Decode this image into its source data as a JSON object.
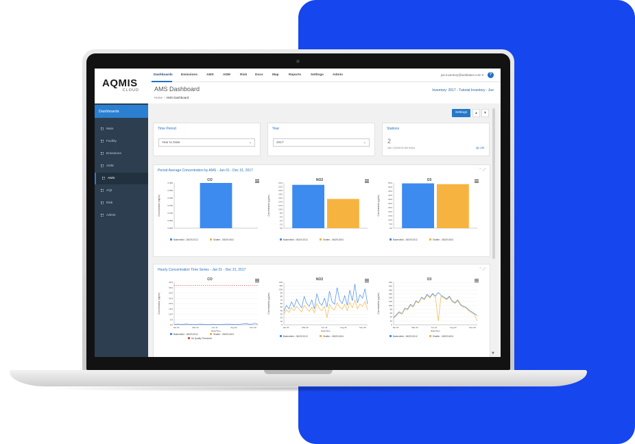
{
  "app": {
    "logo_main": "AQMIS",
    "logo_sub": "CLOUD",
    "user": "joe.inventory@weblakes.com",
    "help_symbol": "?",
    "inventory": "Inventory: 2017 - Tutorial Inventory - Joe",
    "accent_color": "#2b7fd1"
  },
  "nav": {
    "items": [
      {
        "label": "Dashboards",
        "active": true
      },
      {
        "label": "Emissions"
      },
      {
        "label": "AMS"
      },
      {
        "label": "ADM"
      },
      {
        "label": "Risk"
      },
      {
        "label": "Docs"
      },
      {
        "label": "Map"
      },
      {
        "label": "Reports"
      },
      {
        "label": "Settings"
      },
      {
        "label": "Admin"
      }
    ]
  },
  "page": {
    "title": "AMS Dashboard",
    "breadcrumb": [
      "Home",
      "AMS Dashboard"
    ]
  },
  "sidebar": {
    "header": "Dashboards",
    "items": [
      {
        "label": "Main"
      },
      {
        "label": "Facility"
      },
      {
        "label": "Emissions"
      },
      {
        "label": "ADM"
      },
      {
        "label": "AMS",
        "active": true
      },
      {
        "label": "AQI"
      },
      {
        "label": "Risk"
      },
      {
        "label": "Admin"
      }
    ]
  },
  "toolbar": {
    "settings_label": "Settings",
    "up_symbol": "▲",
    "down_symbol": "▼"
  },
  "filters": {
    "time_period": {
      "title": "Time Period",
      "value": "Year to Date"
    },
    "year": {
      "title": "Year",
      "value": "2017"
    },
    "stations": {
      "title": "Stations",
      "count": "2",
      "note": "with CADMOD Met file(s)",
      "list_label": "List"
    }
  },
  "sections": {
    "period": {
      "title": "Period Average Concentration by AMS - Jan 01 - Dec 31, 2017",
      "controls": "⌃ ⤢"
    },
    "hourly": {
      "title": "Hourly Concentration Time Series - Jan 01 - Dec 31, 2017",
      "controls": "⌃ ⤢"
    }
  },
  "chart_data": [
    {
      "type": "bar",
      "title": "CO",
      "ylabel": "Concentration (mg/m³)",
      "ylim": [
        0,
        0.3
      ],
      "yticks": [
        "0.300",
        "0.250",
        "0.200",
        "0.150",
        "0.100",
        "0.050",
        "0.000"
      ],
      "series": [
        {
          "name": "Bakersfield - 06029-2012",
          "color": "#3d8bef",
          "value": 0.3
        },
        {
          "name": "Shafter - 06029-6001",
          "color": "#f6b33f",
          "value": null
        }
      ]
    },
    {
      "type": "bar",
      "title": "NO2",
      "ylabel": "Concentration (µg/m³)",
      "ylim": [
        0,
        24
      ],
      "yticks": [
        "24.0",
        "22.0",
        "20.0",
        "18.0",
        "16.0",
        "14.0",
        "12.0",
        "10.0",
        "8.0",
        "6.0",
        "4.0",
        "2.0",
        "0.0"
      ],
      "series": [
        {
          "name": "Bakersfield - 06029-2012",
          "color": "#3d8bef",
          "value": 23.0
        },
        {
          "name": "Shafter - 06029-6001",
          "color": "#f6b33f",
          "value": 15.5
        }
      ]
    },
    {
      "type": "bar",
      "title": "O3",
      "ylabel": "Concentration (µg/m³)",
      "ylim": [
        0,
        55
      ],
      "yticks": [
        "55.0",
        "50.0",
        "45.0",
        "40.0",
        "35.0",
        "30.0",
        "25.0",
        "20.0",
        "15.0",
        "10.0",
        "5.0",
        "0.0"
      ],
      "series": [
        {
          "name": "Bakersfield - 06029-2012",
          "color": "#3d8bef",
          "value": 54.5
        },
        {
          "name": "Shafter - 06029-6001",
          "color": "#f6b33f",
          "value": 53.5
        }
      ]
    },
    {
      "type": "line",
      "title": "CO",
      "ylabel": "Concentration (mg/m³)",
      "xlabel": "Date/Time",
      "ylim": [
        0,
        40
      ],
      "yticks": [
        "40.0",
        "35.0",
        "30.0",
        "25.0",
        "20.0",
        "15.0",
        "10.0",
        "5.0",
        "0.0"
      ],
      "xticks": [
        "Jan 01",
        "Mar 22",
        "Jun 11",
        "Aug 31",
        "Nov 20"
      ],
      "series": [
        {
          "name": "Bakersfield - 06029-2012",
          "color": "#3d8bef",
          "values": [
            0.4,
            0.6,
            0.5,
            0.4,
            0.7,
            0.5,
            0.4,
            0.3,
            0.5,
            0.6,
            0.4,
            0.3,
            0.4,
            0.5,
            0.4,
            0.3,
            0.4,
            0.5,
            0.6,
            0.5,
            0.4,
            0.3,
            0.5,
            0.8,
            1.2,
            0.6,
            0.5,
            1.5,
            0.4
          ]
        },
        {
          "name": "Shafter - 06029-6001",
          "color": "#f6b33f",
          "values": []
        },
        {
          "name": "Air Quality Threshold",
          "color": "#e05050",
          "dashed": true,
          "values": [
            37
          ]
        }
      ]
    },
    {
      "type": "line",
      "title": "NO2",
      "ylabel": "Concentration (µg/m³)",
      "xlabel": "Date/Time",
      "ylim": [
        0,
        120
      ],
      "yticks": [
        "120",
        "110",
        "100",
        "90",
        "80",
        "70",
        "60",
        "50",
        "40",
        "30",
        "20",
        "10",
        "0"
      ],
      "xticks": [
        "Jan 01",
        "Mar 22",
        "Jun 11",
        "Aug 31",
        "Nov 20"
      ],
      "series": [
        {
          "name": "Bakersfield - 06029-2012",
          "color": "#3d8bef",
          "values": [
            38,
            55,
            45,
            65,
            50,
            72,
            58,
            48,
            80,
            60,
            52,
            70,
            45,
            88,
            62,
            55,
            75,
            50,
            95,
            65,
            58,
            105,
            70,
            60,
            82,
            55,
            98,
            68,
            115,
            62,
            85,
            75,
            102,
            58
          ]
        },
        {
          "name": "Shafter - 06029-6001",
          "color": "#f6b33f",
          "values": [
            30,
            42,
            35,
            48,
            40,
            52,
            44,
            36,
            55,
            46,
            38,
            50,
            34,
            60,
            45,
            40,
            52,
            20,
            58,
            46,
            42,
            62,
            50,
            44,
            58,
            40,
            64,
            48,
            70,
            45,
            58,
            52,
            66,
            42
          ]
        }
      ]
    },
    {
      "type": "line",
      "title": "O3",
      "ylabel": "Concentration (µg/m³)",
      "xlabel": "Date/Time",
      "ylim": [
        0,
        230
      ],
      "yticks": [
        "220",
        "200",
        "180",
        "160",
        "140",
        "120",
        "100",
        "80",
        "60",
        "40",
        "20",
        "0"
      ],
      "xticks": [
        "Jan 01",
        "Mar 22",
        "Jun 11",
        "Aug 31",
        "Nov 20"
      ],
      "series": [
        {
          "name": "Bakersfield - 06029-2012",
          "color": "#3d8bef",
          "values": [
            40,
            55,
            70,
            60,
            90,
            85,
            110,
            100,
            130,
            120,
            150,
            140,
            165,
            150,
            170,
            155,
            175,
            160,
            150,
            140,
            155,
            130,
            120,
            135,
            110,
            100,
            95,
            80,
            70,
            60,
            50
          ]
        },
        {
          "name": "Shafter - 06029-6001",
          "color": "#f6b33f",
          "values": [
            35,
            50,
            65,
            58,
            85,
            80,
            105,
            95,
            125,
            118,
            145,
            135,
            160,
            145,
            165,
            150,
            20,
            155,
            145,
            135,
            150,
            125,
            115,
            130,
            105,
            95,
            90,
            75,
            65,
            55,
            20
          ]
        }
      ]
    }
  ]
}
